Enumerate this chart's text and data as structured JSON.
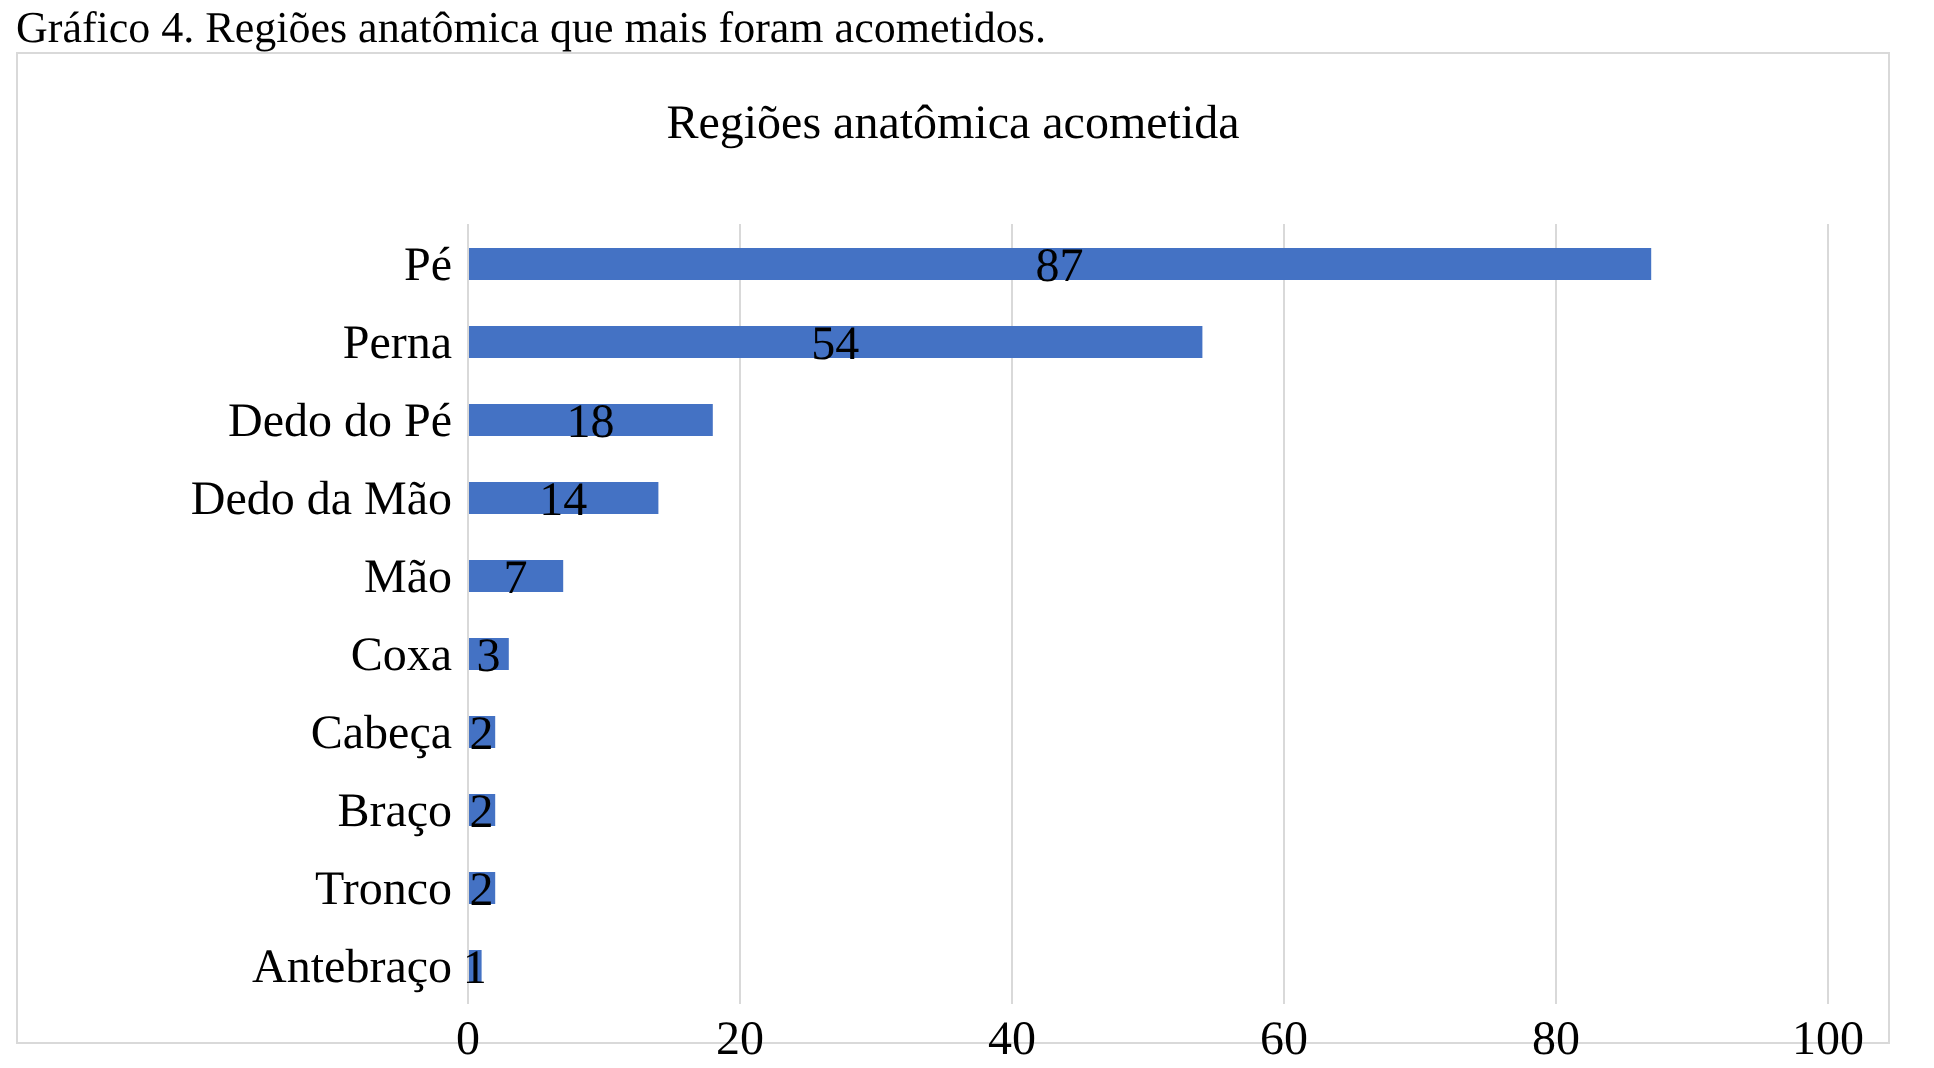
{
  "chart_data": {
    "type": "bar",
    "orientation": "horizontal",
    "title": "Regiões anatômica acometida",
    "annotations": [
      "Gráfico 4. Regiões anatômica que mais foram acometidos."
    ],
    "categories": [
      "Pé",
      "Perna",
      "Dedo do Pé",
      "Dedo da Mão",
      "Mão",
      "Coxa",
      "Cabeça",
      "Braço",
      "Tronco",
      "Antebraço"
    ],
    "values": [
      87,
      54,
      18,
      14,
      7,
      3,
      2,
      2,
      2,
      1
    ],
    "color": "#4472c4",
    "xlim": [
      0,
      100
    ],
    "xticks": [
      0,
      20,
      40,
      60,
      80,
      100
    ],
    "grid": "x",
    "data_labels": true
  }
}
